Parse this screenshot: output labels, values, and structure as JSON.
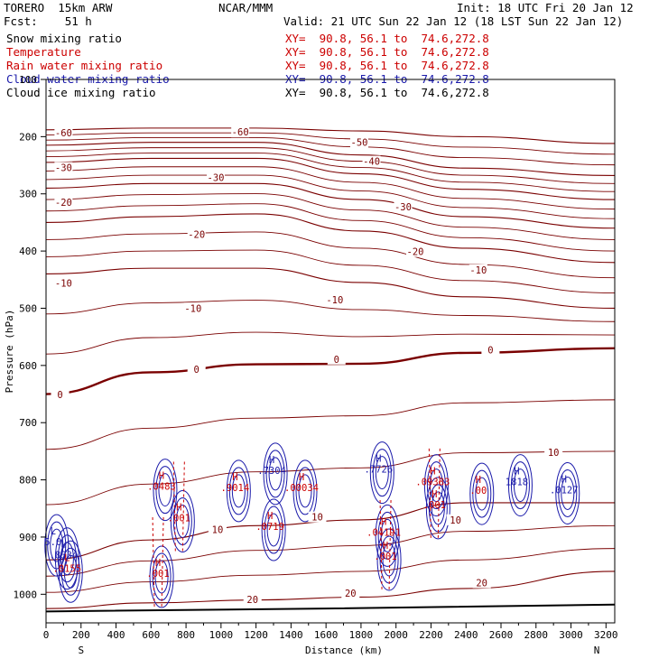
{
  "header": {
    "model": "TORERO  15km ARW",
    "center": "NCAR/MMM",
    "init": "Init: 18 UTC Fri 20 Jan 12",
    "fcst": "Fcst:    51 h",
    "valid": "Valid: 21 UTC Sun 22 Jan 12 (18 LST Sun 22 Jan 12)"
  },
  "fields": [
    {
      "name": "Snow mixing ratio",
      "xy": "XY=  90.8, 56.1 to  74.6,272.8",
      "color": "#000000"
    },
    {
      "name": "Temperature",
      "xy": "XY=  90.8, 56.1 to  74.6,272.8",
      "color": "#cc0000"
    },
    {
      "name": "Rain water mixing ratio",
      "xy": "XY=  90.8, 56.1 to  74.6,272.8",
      "color": "#cc0000"
    },
    {
      "name": "Cloud water mixing ratio",
      "xy": "XY=  90.8, 56.1 to  74.6,272.8",
      "color": "#1a1aaa"
    },
    {
      "name": "Cloud ice mixing ratio",
      "xy": "XY=  90.8, 56.1 to  74.6,272.8",
      "color": "#000000"
    }
  ],
  "chart_data": {
    "type": "line",
    "xlabel": "Distance (km)",
    "ylabel": "Pressure (hPa)",
    "xlim": [
      0,
      3250
    ],
    "ylim": [
      1050,
      100
    ],
    "xticks": [
      0,
      200,
      400,
      600,
      800,
      1000,
      1200,
      1400,
      1600,
      1800,
      2000,
      2200,
      2400,
      2600,
      2800,
      3000,
      3200
    ],
    "yticks": [
      100,
      200,
      300,
      400,
      500,
      600,
      700,
      800,
      900,
      1000
    ],
    "x_end_labels": {
      "left": "S",
      "right": "N"
    },
    "temperature_contours": [
      {
        "value": -60,
        "points": [
          [
            0,
            188
          ],
          [
            600,
            185
          ],
          [
            1200,
            185
          ],
          [
            1800,
            190
          ],
          [
            2400,
            200
          ],
          [
            3250,
            212
          ]
        ]
      },
      {
        "value": -50,
        "points": [
          [
            0,
            215
          ],
          [
            600,
            210
          ],
          [
            1200,
            210
          ],
          [
            1800,
            232
          ],
          [
            2400,
            255
          ],
          [
            3250,
            268
          ]
        ]
      },
      {
        "value": -40,
        "points": [
          [
            0,
            245
          ],
          [
            600,
            238
          ],
          [
            1200,
            238
          ],
          [
            1800,
            265
          ],
          [
            2400,
            292
          ],
          [
            3250,
            310
          ]
        ]
      },
      {
        "value": -30,
        "points": [
          [
            0,
            290
          ],
          [
            600,
            282
          ],
          [
            1200,
            282
          ],
          [
            1800,
            310
          ],
          [
            2400,
            340
          ],
          [
            3250,
            360
          ]
        ]
      },
      {
        "value": -20,
        "points": [
          [
            0,
            350
          ],
          [
            600,
            340
          ],
          [
            1200,
            335
          ],
          [
            1800,
            365
          ],
          [
            2400,
            395
          ],
          [
            3250,
            420
          ]
        ]
      },
      {
        "value": -10,
        "points": [
          [
            0,
            440
          ],
          [
            600,
            430
          ],
          [
            1200,
            430
          ],
          [
            1800,
            455
          ],
          [
            2400,
            480
          ],
          [
            3250,
            500
          ]
        ]
      },
      {
        "value": 0,
        "points": [
          [
            0,
            650
          ],
          [
            600,
            612
          ],
          [
            1200,
            598
          ],
          [
            1800,
            597
          ],
          [
            2400,
            578
          ],
          [
            3250,
            570
          ]
        ]
      },
      {
        "value": 10,
        "points": [
          [
            0,
            940
          ],
          [
            600,
            905
          ],
          [
            1200,
            880
          ],
          [
            1800,
            870
          ],
          [
            2400,
            840
          ],
          [
            3250,
            840
          ]
        ]
      },
      {
        "value": 20,
        "points": [
          [
            0,
            1025
          ],
          [
            600,
            1015
          ],
          [
            1200,
            1010
          ],
          [
            1800,
            1005
          ],
          [
            2400,
            990
          ],
          [
            3250,
            960
          ]
        ]
      }
    ],
    "contour_labels": [
      {
        "text": "-60",
        "x": 100,
        "y": 196
      },
      {
        "text": "-60",
        "x": 1110,
        "y": 195
      },
      {
        "text": "-50",
        "x": 1790,
        "y": 213
      },
      {
        "text": "-40",
        "x": 1860,
        "y": 246
      },
      {
        "text": "-30",
        "x": 100,
        "y": 257
      },
      {
        "text": "-30",
        "x": 970,
        "y": 274
      },
      {
        "text": "-30",
        "x": 2040,
        "y": 326
      },
      {
        "text": "-20",
        "x": 100,
        "y": 318
      },
      {
        "text": "-20",
        "x": 860,
        "y": 374
      },
      {
        "text": "-20",
        "x": 2110,
        "y": 404
      },
      {
        "text": "-10",
        "x": 100,
        "y": 459
      },
      {
        "text": "-10",
        "x": 840,
        "y": 503
      },
      {
        "text": "-10",
        "x": 1650,
        "y": 488
      },
      {
        "text": "-10",
        "x": 2470,
        "y": 436
      },
      {
        "text": "0",
        "x": 80,
        "y": 654
      },
      {
        "text": "0",
        "x": 860,
        "y": 610
      },
      {
        "text": "0",
        "x": 1660,
        "y": 592
      },
      {
        "text": "0",
        "x": 2540,
        "y": 576
      },
      {
        "text": "10",
        "x": 980,
        "y": 890
      },
      {
        "text": "10",
        "x": 1550,
        "y": 868
      },
      {
        "text": "10",
        "x": 2340,
        "y": 873
      },
      {
        "text": "10",
        "x": 2900,
        "y": 755
      },
      {
        "text": "20",
        "x": 1180,
        "y": 1012
      },
      {
        "text": "20",
        "x": 1740,
        "y": 1001
      },
      {
        "text": "20",
        "x": 2490,
        "y": 983
      }
    ],
    "marks": [
      {
        "kind": "H",
        "value": ".0483",
        "x": 660,
        "y": 808,
        "color": "red"
      },
      {
        "kind": "H",
        "value": ".001",
        "x": 760,
        "y": 863,
        "color": "red"
      },
      {
        "kind": "H",
        "value": ".001",
        "x": 640,
        "y": 960,
        "color": "red"
      },
      {
        "kind": "H",
        "value": ".9014",
        "x": 1080,
        "y": 810,
        "color": "red"
      },
      {
        "kind": "H",
        "value": ".7304",
        "x": 1290,
        "y": 780,
        "color": "blue"
      },
      {
        "kind": "H",
        "value": ".0719",
        "x": 1280,
        "y": 878,
        "color": "red"
      },
      {
        "kind": "H",
        "value": ".00034",
        "x": 1460,
        "y": 810,
        "color": "red"
      },
      {
        "kind": "H",
        "value": ".7726",
        "x": 1900,
        "y": 778,
        "color": "blue"
      },
      {
        "kind": "H",
        "value": ".04191",
        "x": 1930,
        "y": 888,
        "color": "red"
      },
      {
        "kind": "H",
        "value": ".001",
        "x": 1940,
        "y": 930,
        "color": "red"
      },
      {
        "kind": "H",
        "value": ".09383",
        "x": 2210,
        "y": 800,
        "color": "red"
      },
      {
        "kind": "H",
        "value": ".001",
        "x": 2220,
        "y": 840,
        "color": "red"
      },
      {
        "kind": "H",
        "value": ".00",
        "x": 2470,
        "y": 815,
        "color": "red"
      },
      {
        "kind": "H",
        "value": "1818",
        "x": 2690,
        "y": 800,
        "color": "blue"
      },
      {
        "kind": "H",
        "value": ".0127",
        "x": 2960,
        "y": 814,
        "color": "blue"
      },
      {
        "kind": "L",
        "value": "5.0",
        "x": 40,
        "y": 905,
        "color": "blue"
      },
      {
        "kind": "L",
        "value": ".8334",
        "x": 100,
        "y": 928,
        "color": "blue"
      },
      {
        "kind": "L",
        "value": ".0155",
        "x": 120,
        "y": 951,
        "color": "red"
      }
    ],
    "colors": {
      "temperature": "#7a0000",
      "freezing": "#7a0000",
      "rain": "#cc0000",
      "cloud_water": "#1a1aaa",
      "terrain": "#000000"
    }
  }
}
